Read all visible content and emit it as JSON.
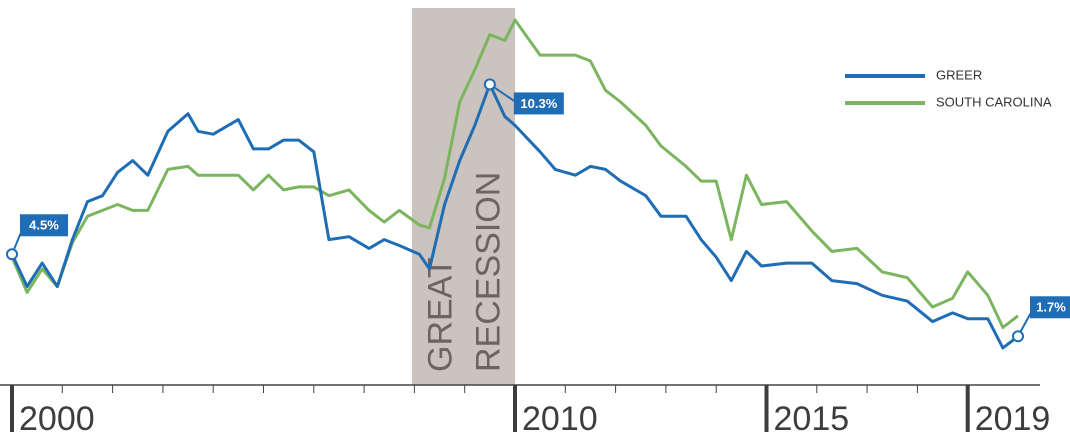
{
  "chart_data": {
    "type": "line",
    "x": [
      2000.0,
      2000.3,
      2000.6,
      2000.9,
      2001.2,
      2001.5,
      2001.8,
      2002.1,
      2002.4,
      2002.7,
      2003.1,
      2003.5,
      2003.7,
      2004.0,
      2004.5,
      2004.8,
      2005.1,
      2005.4,
      2005.7,
      2006.0,
      2006.3,
      2006.7,
      2007.1,
      2007.4,
      2007.7,
      2008.1,
      2008.3,
      2008.6,
      2008.9,
      2009.2,
      2009.5,
      2009.8,
      2010.0,
      2010.5,
      2010.8,
      2011.2,
      2011.5,
      2011.8,
      2012.1,
      2012.6,
      2012.9,
      2013.4,
      2013.7,
      2014.0,
      2014.3,
      2014.6,
      2014.9,
      2015.4,
      2015.9,
      2016.3,
      2016.8,
      2017.3,
      2017.8,
      2018.3,
      2018.7,
      2019.0,
      2019.4,
      2019.7,
      2020.0
    ],
    "series": [
      {
        "name": "GREER",
        "color": "#1f6db5",
        "values": [
          4.5,
          3.4,
          4.2,
          3.4,
          5.0,
          6.3,
          6.5,
          7.3,
          7.7,
          7.2,
          8.7,
          9.3,
          8.7,
          8.6,
          9.1,
          8.1,
          8.1,
          8.4,
          8.4,
          8.0,
          5.0,
          5.1,
          4.7,
          5.0,
          4.8,
          4.5,
          4.0,
          6.2,
          7.7,
          8.9,
          10.3,
          9.2,
          8.9,
          8.0,
          7.4,
          7.2,
          7.5,
          7.4,
          7.0,
          6.5,
          5.8,
          5.8,
          5.0,
          4.4,
          3.6,
          4.6,
          4.1,
          4.2,
          4.2,
          3.6,
          3.5,
          3.1,
          2.9,
          2.2,
          2.5,
          2.3,
          2.3,
          1.3,
          1.7
        ]
      },
      {
        "name": "SOUTH CAROLINA",
        "color": "#7cb55f",
        "values": [
          4.4,
          3.2,
          4.0,
          3.4,
          4.9,
          5.8,
          6.0,
          6.2,
          6.0,
          6.0,
          7.4,
          7.5,
          7.2,
          7.2,
          7.2,
          6.7,
          7.2,
          6.7,
          6.8,
          6.8,
          6.5,
          6.7,
          6.0,
          5.6,
          6.0,
          5.5,
          5.4,
          7.1,
          9.7,
          10.8,
          12.0,
          11.8,
          12.5,
          11.3,
          11.3,
          11.3,
          11.1,
          10.1,
          9.7,
          8.9,
          8.2,
          7.5,
          7.0,
          7.0,
          5.0,
          7.2,
          6.2,
          6.3,
          5.3,
          4.6,
          4.7,
          3.9,
          3.7,
          2.7,
          3.0,
          3.9,
          3.1,
          2.0,
          2.4
        ]
      }
    ],
    "xlim": [
      2000,
      2020
    ],
    "xticks": [
      2000,
      2010,
      2015,
      2019
    ],
    "xminor": [
      2001,
      2002,
      2003,
      2004,
      2005,
      2006,
      2007,
      2008,
      2009,
      2011,
      2012,
      2013,
      2014,
      2016,
      2017,
      2018
    ],
    "recession": {
      "lines": [
        "GREAT",
        "RECESSION"
      ],
      "start": 2007.95,
      "end": 2010.0,
      "color": "#cbc3bd"
    },
    "annotations": [
      {
        "text": "4.5%",
        "x": 2000.0,
        "y": 4.5
      },
      {
        "text": "10.3%",
        "x": 2009.5,
        "y": 10.3
      },
      {
        "text": "1.7%",
        "x": 2020.0,
        "y": 1.7
      }
    ],
    "legend": "top-right"
  }
}
